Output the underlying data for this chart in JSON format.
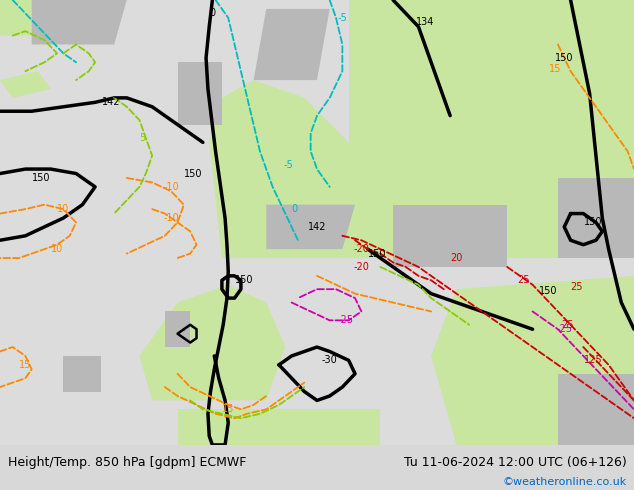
{
  "title_left": "Height/Temp. 850 hPa [gdpm] ECMWF",
  "title_right": "Tu 11-06-2024 12:00 UTC (06+126)",
  "watermark": "©weatheronline.co.uk",
  "watermark_color": "#0066cc",
  "bg_green": "#c8e6a0",
  "bg_gray": "#b8b8b8",
  "bg_light": "#e0e0d8",
  "bg_sea": "#dcdcdc",
  "footer_bg": "#d8d8d8",
  "title_fontsize": 9,
  "watermark_fontsize": 8,
  "fig_width": 6.34,
  "fig_height": 4.9,
  "dpi": 100,
  "black": "#000000",
  "orange": "#ff8800",
  "lime": "#88cc00",
  "teal": "#00bbbb",
  "red": "#cc0000",
  "pink": "#cc00aa",
  "lw_thick": 2.5,
  "lw_thin": 1.3
}
